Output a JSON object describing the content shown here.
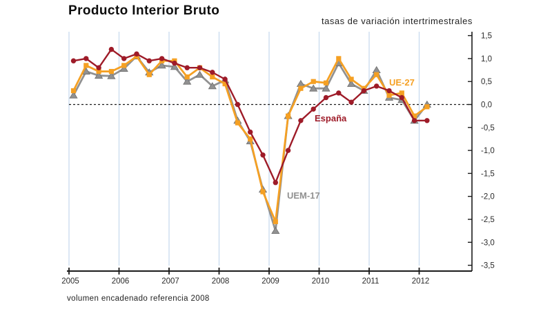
{
  "page": {
    "title": "Producto Interior Bruto",
    "subtitle": "tasas de variación intertrimestrales",
    "footnote": "volumen encadenado referencia 2008"
  },
  "chart_data": {
    "type": "line",
    "title": "Producto Interior Bruto",
    "subtitle": "tasas de variación intertrimestrales",
    "footnote": "volumen encadenado referencia 2008",
    "x_unit": "quarter",
    "x_tick_labels": [
      "2005",
      "2006",
      "2007",
      "2008",
      "2009",
      "2010",
      "2011",
      "2012"
    ],
    "quarters": [
      "2005Q1",
      "2005Q2",
      "2005Q3",
      "2005Q4",
      "2006Q1",
      "2006Q2",
      "2006Q3",
      "2006Q4",
      "2007Q1",
      "2007Q2",
      "2007Q3",
      "2007Q4",
      "2008Q1",
      "2008Q2",
      "2008Q3",
      "2008Q4",
      "2009Q1",
      "2009Q2",
      "2009Q3",
      "2009Q4",
      "2010Q1",
      "2010Q2",
      "2010Q3",
      "2010Q4",
      "2011Q1",
      "2011Q2",
      "2011Q3",
      "2011Q4",
      "2012Q1"
    ],
    "ylim": [
      -3.5,
      1.5
    ],
    "y_ticks": [
      1.5,
      1.0,
      0.5,
      0.0,
      -0.5,
      -1.0,
      -1.5,
      -2.0,
      -2.5,
      -3.0,
      -3.5
    ],
    "y_tick_labels": [
      "1,5",
      "1,0",
      "0,5",
      "0,0",
      "-0,5",
      "-1,0",
      "-1,5",
      "-2,0",
      "-2,5",
      "-3,0",
      "-3,5"
    ],
    "grid": "vertical-light-blue",
    "zero_line": "dashed-black",
    "legend_position": "inline-annotations",
    "series": [
      {
        "name": "UEM-17",
        "marker": "triangle",
        "color": "#919191",
        "values": [
          0.2,
          0.72,
          0.63,
          0.62,
          0.78,
          1.05,
          0.7,
          0.85,
          0.82,
          0.5,
          0.65,
          0.4,
          0.53,
          -0.35,
          -0.8,
          -1.85,
          -2.75,
          -0.25,
          0.45,
          0.35,
          0.35,
          0.9,
          0.45,
          0.3,
          0.75,
          0.15,
          0.1,
          -0.35,
          0.0
        ]
      },
      {
        "name": "UE-27",
        "marker": "square",
        "color": "#F5A023",
        "values": [
          0.3,
          0.85,
          0.72,
          0.72,
          0.85,
          1.05,
          0.65,
          0.95,
          0.95,
          0.6,
          0.8,
          0.6,
          0.45,
          -0.4,
          -0.75,
          -1.9,
          -2.55,
          -0.25,
          0.35,
          0.5,
          0.47,
          1.0,
          0.55,
          0.35,
          0.65,
          0.2,
          0.25,
          -0.25,
          -0.05
        ]
      },
      {
        "name": "España",
        "marker": "circle",
        "color": "#9E1B28",
        "values": [
          0.95,
          1.0,
          0.8,
          1.2,
          1.0,
          1.1,
          0.95,
          1.0,
          0.9,
          0.8,
          0.8,
          0.7,
          0.55,
          0.0,
          -0.6,
          -1.1,
          -1.7,
          -1.0,
          -0.35,
          -0.1,
          0.15,
          0.25,
          0.05,
          0.3,
          0.4,
          0.3,
          0.15,
          -0.35,
          -0.35
        ]
      }
    ],
    "annotations": [
      {
        "text": "UE-27",
        "color": "#F5A023",
        "x": 564,
        "y": 112
      },
      {
        "text": "España",
        "color": "#9E1B28",
        "x": 456,
        "y": 164
      },
      {
        "text": "UEM-17",
        "color": "#919191",
        "x": 416,
        "y": 276
      }
    ],
    "colors": {
      "gridline": "#C8DAEF",
      "axis": "#1a1a1a",
      "zero_line": "#1a1a1a",
      "tick_label": "#2a2a2a"
    }
  }
}
